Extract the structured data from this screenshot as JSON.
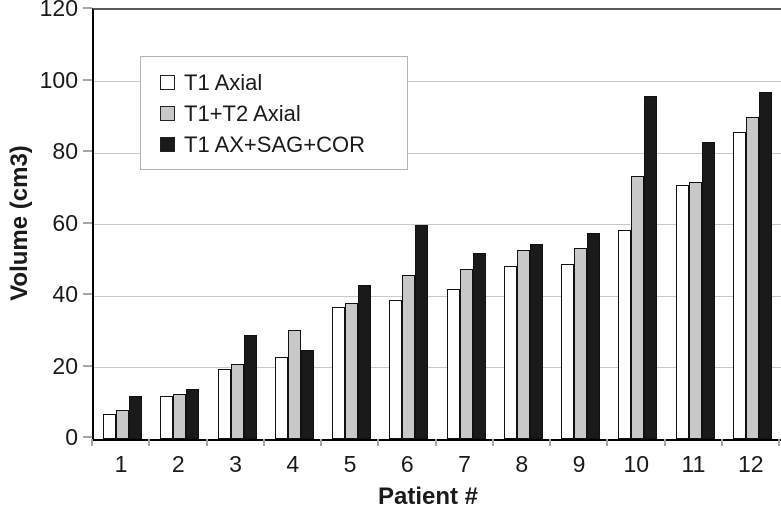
{
  "chart_data": {
    "type": "bar",
    "title": "",
    "xlabel": "Patient #",
    "ylabel": "Volume (cm3)",
    "categories": [
      "1",
      "2",
      "3",
      "4",
      "5",
      "6",
      "7",
      "8",
      "9",
      "10",
      "11",
      "12"
    ],
    "series": [
      {
        "name": "T1 Axial",
        "color": "#ffffff",
        "values": [
          7,
          12,
          19.5,
          23,
          37,
          39,
          42,
          48.5,
          49,
          58.5,
          71,
          86
        ]
      },
      {
        "name": "T1+T2 Axial",
        "color": "#c8c8c8",
        "values": [
          8,
          12.5,
          21,
          30.5,
          38,
          46,
          47.5,
          53,
          53.5,
          73.5,
          72,
          90
        ]
      },
      {
        "name": "T1 AX+SAG+COR",
        "color": "#1a1a1a",
        "values": [
          12,
          14,
          29,
          25,
          43,
          60,
          52,
          54.5,
          57.5,
          96,
          83,
          97
        ]
      }
    ],
    "ylim": [
      0,
      120
    ],
    "yticks": [
      0,
      20,
      40,
      60,
      80,
      100,
      120
    ],
    "grid": true,
    "legend_position": "upper-left"
  },
  "colors": {
    "background": "#ffffff",
    "bar_border": "#111111",
    "gridline": "#c9c9c9",
    "axis": "#000000",
    "plot_border": "#595959",
    "text": "#1a1a1a",
    "legend_border": "#b3b3b3"
  }
}
